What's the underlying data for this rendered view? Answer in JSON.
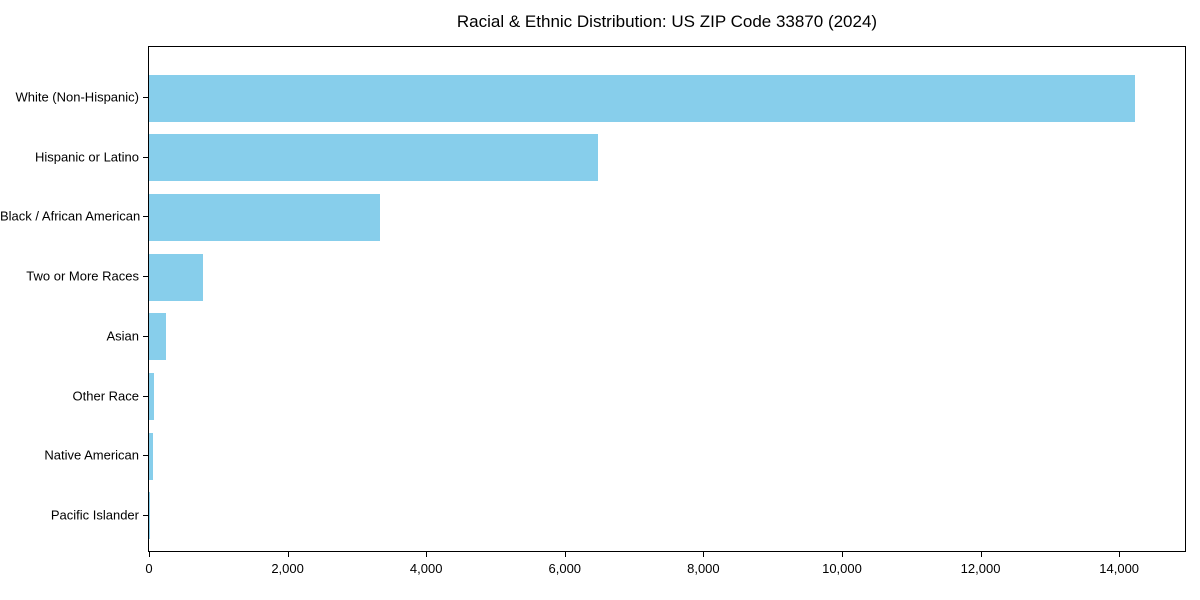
{
  "chart_data": {
    "type": "bar",
    "orientation": "horizontal",
    "title": "Racial & Ethnic Distribution: US ZIP Code 33870 (2024)",
    "xlabel": "",
    "ylabel": "",
    "categories": [
      "White (Non-Hispanic)",
      "Hispanic or Latino",
      "Black / African American",
      "Two or More Races",
      "Asian",
      "Other Race",
      "Native American",
      "Pacific Islander"
    ],
    "values": [
      14230,
      6480,
      3340,
      780,
      245,
      70,
      60,
      10
    ],
    "xlim": [
      0,
      14950
    ],
    "xticks": [
      0,
      2000,
      4000,
      6000,
      8000,
      10000,
      12000,
      14000
    ],
    "xtick_labels": [
      "0",
      "2,000",
      "4,000",
      "6,000",
      "8,000",
      "10,000",
      "12,000",
      "14,000"
    ],
    "grid": false,
    "legend": "none",
    "bar_color": "#87CEEB",
    "background_color": "#ffffff",
    "axis_color": "#000000",
    "text_color": "#000000"
  }
}
